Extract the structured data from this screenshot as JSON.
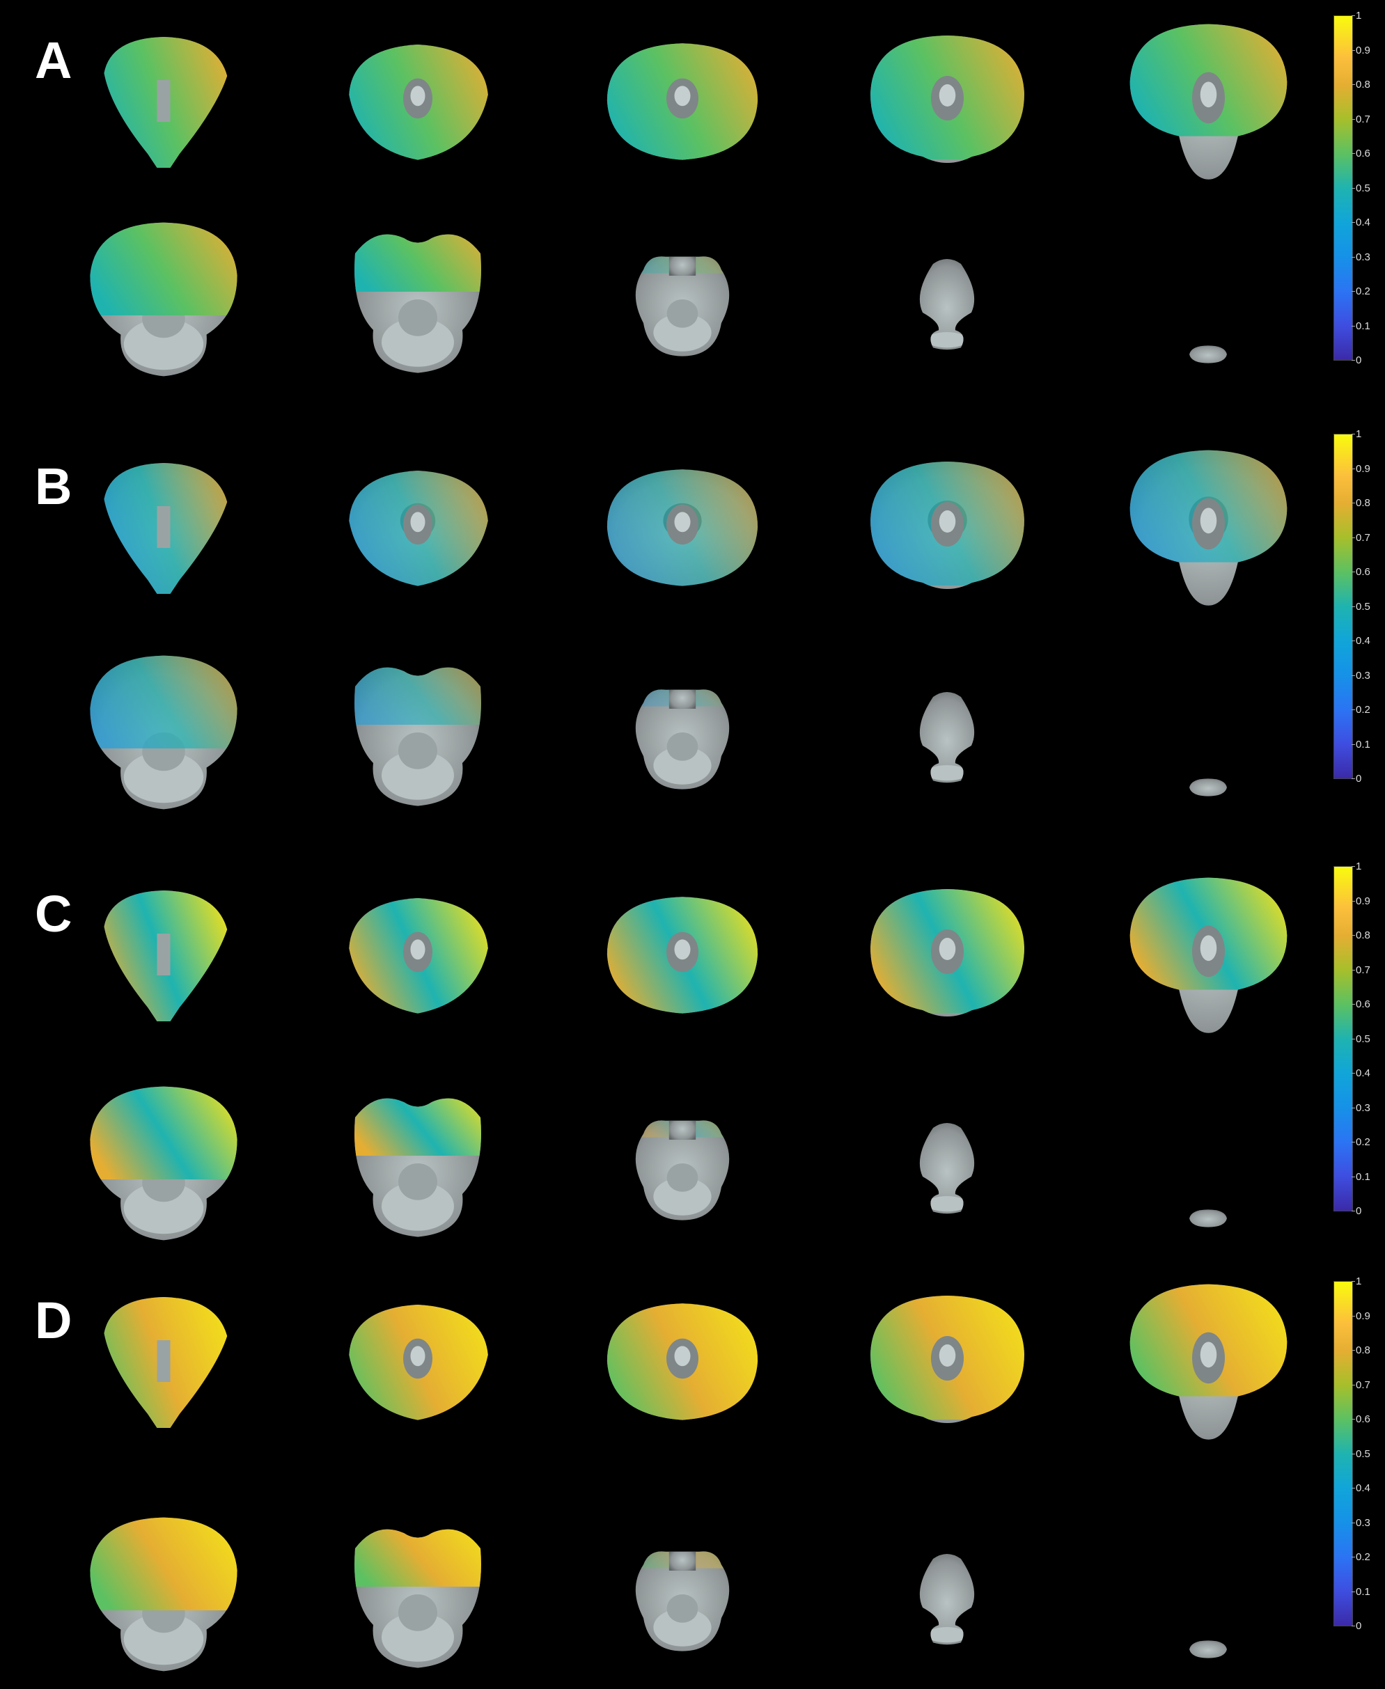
{
  "panels": [
    {
      "letter": "A",
      "scheme": "A"
    },
    {
      "letter": "B",
      "scheme": "B"
    },
    {
      "letter": "C",
      "scheme": "C"
    },
    {
      "letter": "D",
      "scheme": "D"
    }
  ],
  "colorbar": {
    "ticks": [
      "1",
      "0.9",
      "0.8",
      "0.7",
      "0.6",
      "0.5",
      "0.4",
      "0.3",
      "0.2",
      "0.1",
      "0"
    ],
    "colormap": "parula"
  },
  "colors": {
    "background": "#000000",
    "tissue": "#8f9596",
    "tissue_light": "#b9c3c3",
    "tissue_dark": "#5f6566",
    "teal": "#1fb3b0",
    "blue": "#1aa0e0",
    "green": "#5cc162",
    "yellow_green": "#a7bf2b",
    "orange": "#e5ae33",
    "yellow": "#f3e11a"
  }
}
